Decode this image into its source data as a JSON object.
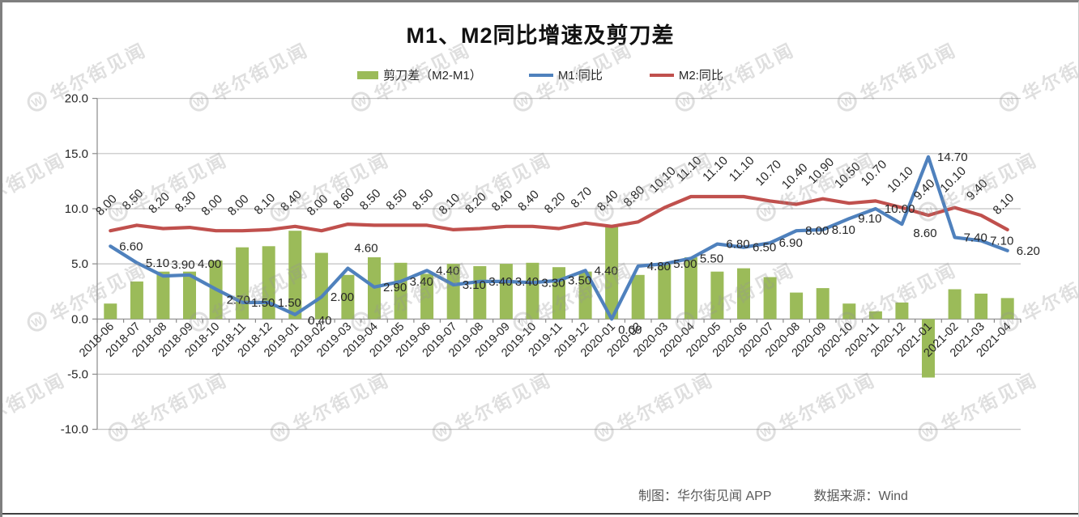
{
  "page": {
    "title": "M1、M2同比增速及剪刀差",
    "watermark": {
      "logo": "W",
      "text": "华尔街见闻"
    },
    "footer": {
      "credit": "制图：华尔街见闻 APP",
      "source": "数据来源：Wind"
    }
  },
  "legend": [
    {
      "label": "剪刀差（M2-M1）",
      "type": "bar",
      "color": "#9BBB59"
    },
    {
      "label": "M1:同比",
      "type": "line",
      "color": "#4F81BD"
    },
    {
      "label": "M2:同比",
      "type": "line",
      "color": "#C0504D"
    }
  ],
  "chart_data": {
    "type": "combo",
    "title": "M1、M2同比增速及剪刀差",
    "xlabel": "",
    "ylabel": "",
    "ylim": [
      -10,
      20
    ],
    "yticks": [
      20.0,
      15.0,
      10.0,
      5.0,
      0.0,
      -5.0,
      -10.0
    ],
    "grid": true,
    "legend_position": "top",
    "categories": [
      "2018-06",
      "2018-07",
      "2018-08",
      "2018-09",
      "2018-10",
      "2018-11",
      "2018-12",
      "2019-01",
      "2019-02",
      "2019-03",
      "2019-04",
      "2019-05",
      "2019-06",
      "2019-07",
      "2019-08",
      "2019-09",
      "2019-10",
      "2019-11",
      "2019-12",
      "2020-01",
      "2020-02",
      "2020-03",
      "2020-04",
      "2020-05",
      "2020-06",
      "2020-07",
      "2020-08",
      "2020-09",
      "2020-10",
      "2020-11",
      "2020-12",
      "2021-01",
      "2021-02",
      "2021-03",
      "2021-04"
    ],
    "series": [
      {
        "name": "剪刀差（M2-M1）",
        "type": "bar",
        "color": "#9BBB59",
        "data_labels": false,
        "values": [
          1.4,
          3.4,
          4.3,
          4.3,
          5.3,
          6.5,
          6.6,
          8.0,
          6.0,
          4.0,
          5.6,
          5.1,
          4.1,
          5.0,
          4.8,
          5.0,
          5.1,
          4.7,
          4.3,
          8.4,
          4.0,
          5.1,
          5.6,
          4.3,
          4.6,
          3.8,
          2.4,
          2.8,
          1.4,
          0.7,
          1.5,
          -5.3,
          2.7,
          2.3,
          1.9
        ]
      },
      {
        "name": "M1:同比",
        "type": "line",
        "color": "#4F81BD",
        "data_labels": true,
        "values": [
          6.6,
          5.1,
          3.9,
          4.0,
          2.7,
          1.5,
          1.5,
          0.4,
          2.0,
          4.6,
          2.9,
          3.4,
          4.4,
          3.1,
          3.4,
          3.4,
          3.3,
          3.5,
          4.4,
          0.0,
          4.8,
          5.0,
          5.5,
          6.8,
          6.5,
          6.9,
          8.0,
          8.1,
          9.1,
          10.0,
          8.6,
          14.7,
          7.4,
          7.1,
          6.2
        ]
      },
      {
        "name": "M2:同比",
        "type": "line",
        "color": "#C0504D",
        "data_labels": true,
        "values": [
          8.0,
          8.5,
          8.2,
          8.3,
          8.0,
          8.0,
          8.1,
          8.4,
          8.0,
          8.6,
          8.5,
          8.5,
          8.5,
          8.1,
          8.2,
          8.4,
          8.4,
          8.2,
          8.7,
          8.4,
          8.8,
          10.1,
          11.1,
          11.1,
          11.1,
          10.7,
          10.4,
          10.9,
          10.5,
          10.7,
          10.1,
          9.4,
          10.1,
          9.4,
          8.1
        ]
      }
    ]
  }
}
